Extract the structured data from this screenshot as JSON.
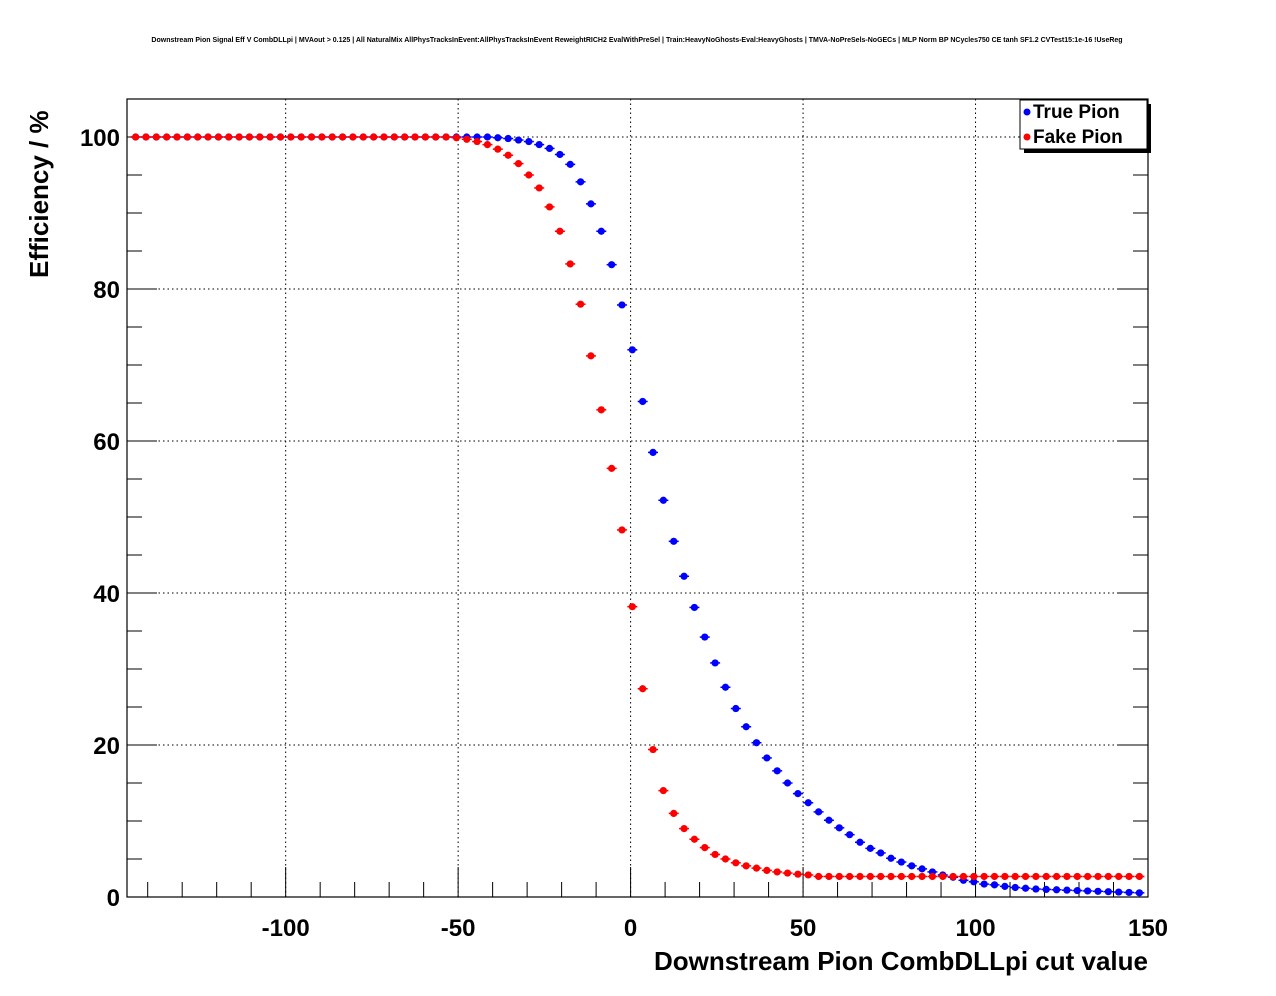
{
  "chart_data": {
    "type": "scatter",
    "title": "Downstream Pion Signal Eff V CombDLLpi | MVAout > 0.125 | All NaturalMix AllPhysTracksInEvent:AllPhysTracksInEvent ReweightRICH2 EvalWithPreSel | Train:HeavyNoGhosts-Eval:HeavyGhosts | TMVA-NoPreSels-NoGECs | MLP Norm BP NCycles750 CE tanh SF1.2 CVTest15:1e-16 !UseReg",
    "xlabel": "Downstream Pion CombDLLpi cut value",
    "ylabel": "Efficiency / %",
    "xlim": [
      -146,
      150
    ],
    "ylim": [
      0,
      105
    ],
    "xticks": [
      -100,
      -50,
      0,
      50,
      100,
      150
    ],
    "xtick_labels": [
      "-100",
      "-50",
      "0",
      "50",
      "100",
      "150"
    ],
    "yticks": [
      0,
      20,
      40,
      60,
      80,
      100
    ],
    "ytick_labels": [
      "0",
      "20",
      "40",
      "60",
      "80",
      "100"
    ],
    "grid": true,
    "legend_position": "top-right",
    "x": [
      -143.5,
      -140.5,
      -137.5,
      -134.5,
      -131.5,
      -128.5,
      -125.5,
      -122.5,
      -119.5,
      -116.5,
      -113.5,
      -110.5,
      -107.5,
      -104.5,
      -101.5,
      -98.5,
      -95.5,
      -92.5,
      -89.5,
      -86.5,
      -83.5,
      -80.5,
      -77.5,
      -74.5,
      -71.5,
      -68.5,
      -65.5,
      -62.5,
      -59.5,
      -56.5,
      -53.5,
      -50.5,
      -47.5,
      -44.5,
      -41.5,
      -38.5,
      -35.5,
      -32.5,
      -29.5,
      -26.5,
      -23.5,
      -20.5,
      -17.5,
      -14.5,
      -11.5,
      -8.5,
      -5.5,
      -2.5,
      0.5,
      3.5,
      6.5,
      9.5,
      12.5,
      15.5,
      18.5,
      21.5,
      24.5,
      27.5,
      30.5,
      33.5,
      36.5,
      39.5,
      42.5,
      45.5,
      48.5,
      51.5,
      54.5,
      57.5,
      60.5,
      63.5,
      66.5,
      69.5,
      72.5,
      75.5,
      78.5,
      81.5,
      84.5,
      87.5,
      90.5,
      93.5,
      96.5,
      99.5,
      102.5,
      105.5,
      108.5,
      111.5,
      114.5,
      117.5,
      120.5,
      123.5,
      126.5,
      129.5,
      132.5,
      135.5,
      138.5,
      141.5,
      144.5,
      147.5
    ],
    "series": [
      {
        "name": "True Pion",
        "color": "#0000ff",
        "values": [
          100,
          100,
          100,
          100,
          100,
          100,
          100,
          100,
          100,
          100,
          100,
          100,
          100,
          100,
          100,
          100,
          100,
          100,
          100,
          100,
          100,
          100,
          100,
          100,
          100,
          100,
          100,
          100,
          100,
          100,
          100,
          100,
          100,
          100,
          100,
          99.9,
          99.8,
          99.6,
          99.4,
          99.0,
          98.5,
          97.7,
          96.4,
          94.1,
          91.2,
          87.6,
          83.2,
          77.9,
          72.0,
          65.2,
          58.5,
          52.2,
          46.8,
          42.2,
          38.1,
          34.2,
          30.8,
          27.6,
          24.8,
          22.4,
          20.3,
          18.3,
          16.6,
          15.0,
          13.6,
          12.4,
          11.2,
          10.1,
          9.1,
          8.2,
          7.2,
          6.4,
          5.8,
          5.1,
          4.6,
          4.1,
          3.7,
          3.3,
          2.9,
          2.6,
          2.2,
          2.0,
          1.7,
          1.6,
          1.4,
          1.25,
          1.15,
          1.05,
          1.0,
          0.95,
          0.9,
          0.85,
          0.8,
          0.75,
          0.7,
          0.65,
          0.6,
          0.55
        ]
      },
      {
        "name": "Fake Pion",
        "color": "#ff0000",
        "values": [
          100,
          100,
          100,
          100,
          100,
          100,
          100,
          100,
          100,
          100,
          100,
          100,
          100,
          100,
          100,
          100,
          100,
          100,
          100,
          100,
          100,
          100,
          100,
          100,
          100,
          100,
          100,
          100,
          100,
          100,
          100,
          99.9,
          99.7,
          99.4,
          99.0,
          98.4,
          97.6,
          96.5,
          95.0,
          93.3,
          90.8,
          87.6,
          83.3,
          78.0,
          71.2,
          64.1,
          56.4,
          48.3,
          38.2,
          27.4,
          19.4,
          14.0,
          11.0,
          9.0,
          7.6,
          6.5,
          5.6,
          5.0,
          4.5,
          4.1,
          3.8,
          3.5,
          3.3,
          3.15,
          3.0,
          2.9,
          2.7,
          2.7,
          2.7,
          2.7,
          2.7,
          2.7,
          2.7,
          2.7,
          2.7,
          2.7,
          2.7,
          2.7,
          2.7,
          2.7,
          2.7,
          2.7,
          2.7,
          2.7,
          2.7,
          2.7,
          2.7,
          2.7,
          2.7,
          2.7,
          2.7,
          2.7,
          2.7,
          2.7,
          2.7,
          2.7,
          2.7,
          2.7
        ]
      }
    ]
  }
}
